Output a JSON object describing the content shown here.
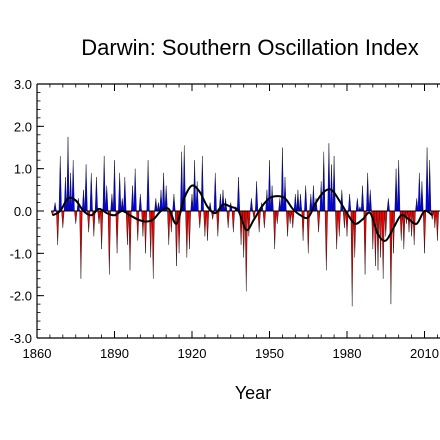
{
  "chart_data": {
    "type": "area",
    "title": "Darwin: Southern Oscillation Index",
    "xlabel": "Year",
    "ylabel": "",
    "xlim": [
      1860,
      2016
    ],
    "ylim": [
      -3.0,
      3.0
    ],
    "x_ticks": [
      1860,
      1890,
      1920,
      1950,
      1980,
      2010
    ],
    "x_tick_labels": [
      "1860",
      "1890",
      "1920",
      "1950",
      "1980",
      "2010"
    ],
    "y_ticks": [
      -3.0,
      -2.0,
      -1.0,
      0.0,
      1.0,
      2.0,
      3.0
    ],
    "y_tick_labels": [
      "-3.0",
      "-2.0",
      "-1.0",
      "0.0",
      "1.0",
      "2.0",
      "3.0"
    ],
    "grid": false,
    "fill_colors": {
      "positive": "#0000ff",
      "negative": "#ff0000"
    },
    "series": [
      {
        "style": "filled-bars",
        "x": [
          1866,
          1867,
          1868,
          1869,
          1870,
          1871,
          1872,
          1873,
          1874,
          1875,
          1876,
          1877,
          1878,
          1879,
          1880,
          1881,
          1882,
          1883,
          1884,
          1885,
          1886,
          1887,
          1888,
          1889,
          1890,
          1891,
          1892,
          1893,
          1894,
          1895,
          1896,
          1897,
          1898,
          1899,
          1900,
          1901,
          1902,
          1903,
          1904,
          1905,
          1906,
          1907,
          1908,
          1909,
          1910,
          1911,
          1912,
          1913,
          1914,
          1915,
          1916,
          1917,
          1918,
          1919,
          1920,
          1921,
          1922,
          1923,
          1924,
          1925,
          1926,
          1927,
          1928,
          1929,
          1930,
          1931,
          1932,
          1933,
          1934,
          1935,
          1936,
          1937,
          1938,
          1939,
          1940,
          1941,
          1942,
          1943,
          1944,
          1945,
          1946,
          1947,
          1948,
          1949,
          1950,
          1951,
          1952,
          1953,
          1954,
          1955,
          1956,
          1957,
          1958,
          1959,
          1960,
          1961,
          1962,
          1963,
          1964,
          1965,
          1966,
          1967,
          1968,
          1969,
          1970,
          1971,
          1972,
          1973,
          1974,
          1975,
          1976,
          1977,
          1978,
          1979,
          1980,
          1981,
          1982,
          1983,
          1984,
          1985,
          1986,
          1987,
          1988,
          1989,
          1990,
          1991,
          1992,
          1993,
          1994,
          1995,
          1996,
          1997,
          1998,
          1999,
          2000,
          2001,
          2002,
          2003,
          2004,
          2005,
          2006,
          2007,
          2008,
          2009,
          2010,
          2011,
          2012,
          2013,
          2014,
          2015
        ],
        "values": [
          -0.1,
          0.2,
          -0.8,
          1.3,
          -0.4,
          0.8,
          1.75,
          0.9,
          1.2,
          -0.3,
          0.3,
          -1.6,
          0.5,
          1.1,
          -0.5,
          0.9,
          -0.6,
          0.8,
          -0.3,
          -0.9,
          1.3,
          0.6,
          -1.5,
          0.4,
          1.2,
          -1.0,
          0.9,
          0.3,
          0.8,
          -0.8,
          -1.4,
          0.6,
          1.0,
          -0.7,
          0.4,
          -0.6,
          -1.0,
          1.2,
          -1.1,
          -1.6,
          0.3,
          0.2,
          0.5,
          0.9,
          0.6,
          -0.8,
          -0.5,
          0.4,
          -1.3,
          -1.0,
          1.4,
          1.55,
          -1.1,
          -0.9,
          0.4,
          1.2,
          0.7,
          -0.4,
          1.3,
          -0.6,
          -0.7,
          0.2,
          -0.2,
          0.9,
          -0.6,
          0.4,
          0.5,
          0.3,
          -0.4,
          0.2,
          -0.5,
          0.1,
          0.8,
          -0.8,
          -1.1,
          -1.9,
          -0.6,
          0.3,
          -0.2,
          0.7,
          -0.5,
          0.2,
          -0.4,
          0.5,
          1.2,
          0.6,
          -0.9,
          -0.3,
          0.3,
          1.5,
          0.8,
          -0.6,
          -0.3,
          -0.4,
          0.4,
          0.5,
          0.4,
          -0.7,
          0.6,
          -1.0,
          0.4,
          0.6,
          0.3,
          -0.5,
          0.7,
          1.4,
          -1.4,
          1.6,
          1.1,
          1.3,
          -0.9,
          -0.6,
          0.5,
          -0.4,
          -0.6,
          0.4,
          -2.25,
          -1.1,
          0.3,
          0.1,
          0.6,
          -1.5,
          0.9,
          0.5,
          -0.9,
          -1.3,
          -1.4,
          -1.1,
          -1.6,
          -0.6,
          0.3,
          -2.2,
          -1.0,
          1.0,
          1.2,
          -0.7,
          -0.9,
          -0.3,
          -0.5,
          -0.6,
          -0.8,
          0.3,
          0.9,
          0.7,
          -1.0,
          1.5,
          1.2,
          -0.2,
          -0.4,
          -0.7
        ]
      },
      {
        "style": "smoothed-line",
        "x": [
          1866,
          1869,
          1872,
          1875,
          1878,
          1881,
          1884,
          1887,
          1890,
          1893,
          1896,
          1899,
          1902,
          1905,
          1908,
          1911,
          1914,
          1917,
          1920,
          1923,
          1926,
          1929,
          1932,
          1935,
          1938,
          1941,
          1944,
          1947,
          1950,
          1953,
          1956,
          1959,
          1962,
          1965,
          1968,
          1971,
          1974,
          1977,
          1980,
          1983,
          1986,
          1989,
          1992,
          1995,
          1998,
          2001,
          2004,
          2007,
          2010,
          2013
        ],
        "values": [
          -0.1,
          0.0,
          0.3,
          0.25,
          0.0,
          -0.1,
          0.05,
          -0.05,
          -0.1,
          0.0,
          -0.1,
          -0.2,
          -0.25,
          -0.2,
          0.0,
          0.05,
          -0.3,
          0.3,
          0.6,
          0.45,
          0.1,
          -0.05,
          0.15,
          0.1,
          0.0,
          -0.45,
          -0.2,
          0.1,
          0.3,
          0.35,
          0.3,
          0.05,
          -0.1,
          -0.15,
          0.2,
          0.45,
          0.5,
          0.25,
          -0.05,
          -0.3,
          -0.2,
          -0.05,
          -0.55,
          -0.7,
          -0.4,
          -0.1,
          -0.2,
          -0.3,
          0.0,
          -0.1
        ]
      }
    ]
  }
}
